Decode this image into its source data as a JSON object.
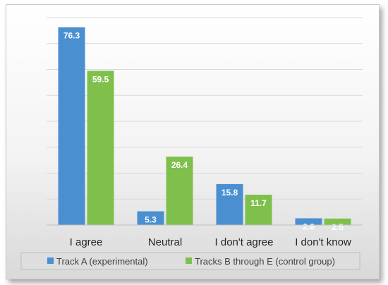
{
  "chart_data": {
    "type": "bar",
    "categories": [
      "I agree",
      "Neutral",
      "I don't agree",
      "I don't know"
    ],
    "series": [
      {
        "name": "Track A (experimental)",
        "values": [
          76.3,
          5.3,
          15.8,
          2.6
        ],
        "color": "#4a8fd0"
      },
      {
        "name": "Tracks B through E (control group)",
        "values": [
          59.5,
          26.4,
          11.7,
          2.5
        ],
        "color": "#7fc04c"
      }
    ],
    "ylim": [
      0,
      80
    ],
    "grid": true,
    "legend": "bottom",
    "title": "",
    "xlabel": "",
    "ylabel": ""
  }
}
